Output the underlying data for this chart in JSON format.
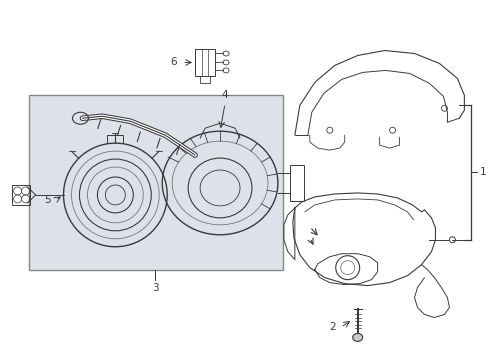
{
  "bg_color": "#ffffff",
  "line_color": "#3a3a3a",
  "light_line": "#777777",
  "box_fill": "#dde2ea",
  "box_border": "#666666",
  "figsize": [
    4.9,
    3.6
  ],
  "dpi": 100,
  "label_fontsize": 7.5
}
